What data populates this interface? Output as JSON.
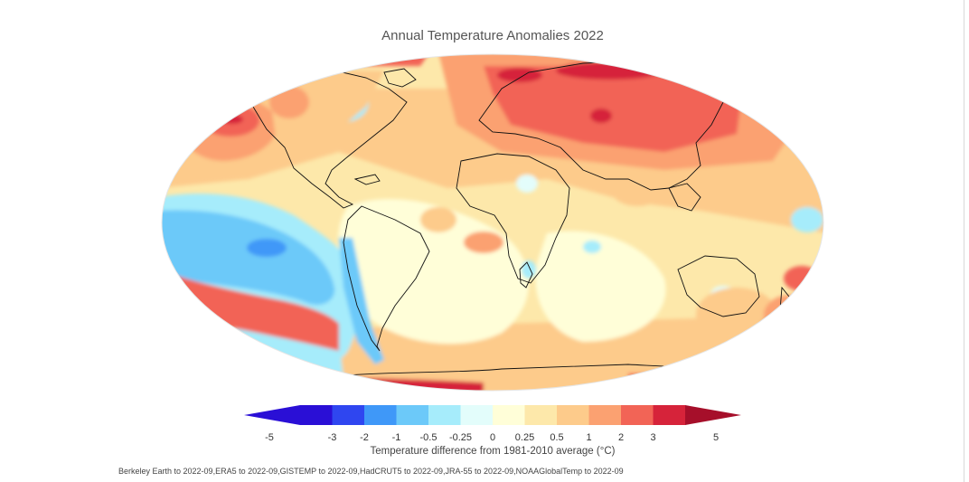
{
  "title": "Annual Temperature Anomalies 2022",
  "legend": {
    "caption": "Temperature difference from 1981-2010 average (°C)",
    "bins": [
      {
        "from": "-5",
        "to": "-3",
        "color": "#2a0fd6"
      },
      {
        "from": "-3",
        "to": "-2",
        "color": "#2f46f0"
      },
      {
        "from": "-2",
        "to": "-1",
        "color": "#3f98f8"
      },
      {
        "from": "-1",
        "to": "-0.5",
        "color": "#6cc9f9"
      },
      {
        "from": "-0.5",
        "to": "-0.25",
        "color": "#a6ecfb"
      },
      {
        "from": "-0.25",
        "to": "0",
        "color": "#e3fdfb"
      },
      {
        "from": "0",
        "to": "0.25",
        "color": "#fffed8"
      },
      {
        "from": "0.25",
        "to": "0.5",
        "color": "#fde8aa"
      },
      {
        "from": "0.5",
        "to": "1",
        "color": "#fdcb8b"
      },
      {
        "from": "1",
        "to": "2",
        "color": "#fba171"
      },
      {
        "from": "2",
        "to": "3",
        "color": "#f26456"
      },
      {
        "from": "3",
        "to": "5",
        "color": "#d6233a"
      }
    ],
    "underflow_color": "#2a0fd6",
    "overflow_color": "#a60f2a",
    "ticks": [
      "-5",
      "-3",
      "-2",
      "-1",
      "-0.5",
      "-0.25",
      "0",
      "0.25",
      "0.5",
      "1",
      "2",
      "3",
      "5"
    ]
  },
  "sources": "Berkeley Earth to 2022-09,ERA5 to 2022-09,GISTEMP to 2022-09,HadCRUT5 to 2022-09,JRA-55 to 2022-09,NOAAGlobalTemp to 2022-09"
}
